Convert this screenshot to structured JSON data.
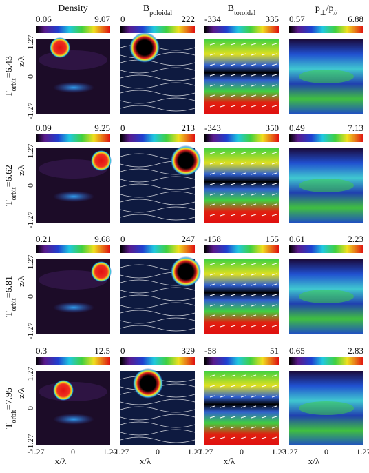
{
  "columns": [
    [
      {
        "text": "Density",
        "sub": false
      }
    ],
    [
      {
        "text": "B",
        "sub": false
      },
      {
        "text": "poloidal",
        "sub": true
      }
    ],
    [
      {
        "text": "B",
        "sub": false
      },
      {
        "text": "toroidal",
        "sub": true
      }
    ],
    [
      {
        "text": "p",
        "sub": false
      },
      {
        "text": "⊥",
        "sub": true
      },
      {
        "text": "/p",
        "sub": false
      },
      {
        "text": "//",
        "sub": true
      }
    ]
  ],
  "rows": [
    {
      "label": [
        {
          "text": "T",
          "sub": false
        },
        {
          "text": "orbit",
          "sub": true
        },
        {
          "text": "=6.43",
          "sub": false
        }
      ],
      "colorbars": [
        [
          "0.06",
          "9.07"
        ],
        [
          "0",
          "222"
        ],
        [
          "-334",
          "335"
        ],
        [
          "0.57",
          "6.88"
        ]
      ]
    },
    {
      "label": [
        {
          "text": "T",
          "sub": false
        },
        {
          "text": "orbit",
          "sub": true
        },
        {
          "text": "=6.62",
          "sub": false
        }
      ],
      "colorbars": [
        [
          "0.09",
          "9.25"
        ],
        [
          "0",
          "213"
        ],
        [
          "-343",
          "350"
        ],
        [
          "0.49",
          "7.13"
        ]
      ]
    },
    {
      "label": [
        {
          "text": "T",
          "sub": false
        },
        {
          "text": "orbit",
          "sub": true
        },
        {
          "text": "=6.81",
          "sub": false
        }
      ],
      "colorbars": [
        [
          "0.21",
          "9.68"
        ],
        [
          "0",
          "247"
        ],
        [
          "-158",
          "155"
        ],
        [
          "0.61",
          "2.23"
        ]
      ]
    },
    {
      "label": [
        {
          "text": "T",
          "sub": false
        },
        {
          "text": "orbit",
          "sub": true
        },
        {
          "text": "=7.95",
          "sub": false
        }
      ],
      "colorbars": [
        [
          "0.3",
          "12.5"
        ],
        [
          "0",
          "329"
        ],
        [
          "-58",
          "51"
        ],
        [
          "0.65",
          "2.83"
        ]
      ]
    }
  ],
  "y_axis": {
    "label": "z/λ",
    "ticks": [
      "1.27",
      "0",
      "-1.27"
    ]
  },
  "x_axis": {
    "label": "x/λ",
    "ticks": [
      "-1.27",
      "0",
      "1.27"
    ]
  }
}
